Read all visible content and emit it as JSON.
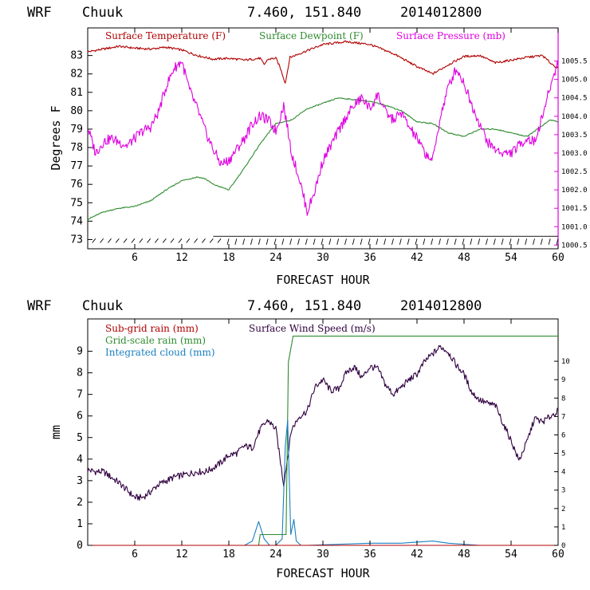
{
  "colors": {
    "temperature": "#b00000",
    "dewpoint": "#2e8b2e",
    "pressure": "#e000e0",
    "wind": "#300040",
    "subgrid": "#b00000",
    "gridscale": "#2e8b2e",
    "cloud": "#1a7fc0",
    "barb": "#000000"
  },
  "chart_data": [
    {
      "type": "line",
      "header": {
        "model": "WRF",
        "location": "Chuuk",
        "coords": "7.460, 151.840",
        "datetime": "2014012800"
      },
      "xlabel": "FORECAST HOUR",
      "ylabel": "Degrees F",
      "xlim": [
        0,
        60
      ],
      "xticks": [
        "6",
        "12",
        "18",
        "24",
        "30",
        "36",
        "42",
        "48",
        "54",
        "60"
      ],
      "ylim_left": [
        72.5,
        84.5
      ],
      "yticks_left": [
        "73",
        "74",
        "75",
        "76",
        "77",
        "78",
        "79",
        "80",
        "81",
        "82",
        "83"
      ],
      "ylim_right": [
        1000.4,
        1006.4
      ],
      "yticks_right": [
        "1000.5",
        "1001.0",
        "1001.5",
        "1002.0",
        "1002.5",
        "1003.0",
        "1003.5",
        "1004.0",
        "1004.5",
        "1005.0",
        "1005.5"
      ],
      "grid": false,
      "legend_placement": "top",
      "legend": [
        "Surface Temperature (F)",
        "Surface Dewpoint (F)",
        "Surface Pressure (mb)"
      ],
      "series": [
        {
          "name": "Surface Temperature (F)",
          "axis": "left",
          "x": [
            0,
            2,
            4,
            6,
            8,
            10,
            12,
            14,
            16,
            18,
            20,
            22,
            22.5,
            23,
            24,
            24.5,
            25.2,
            25.8,
            27,
            30,
            33,
            36,
            39,
            42,
            44,
            46,
            48,
            50,
            52,
            54,
            56,
            58,
            59,
            60
          ],
          "y": [
            83.2,
            83.35,
            83.5,
            83.4,
            83.35,
            83.45,
            83.3,
            83.0,
            82.8,
            82.85,
            82.75,
            82.85,
            82.5,
            82.8,
            82.85,
            82.4,
            81.5,
            82.9,
            83.1,
            83.6,
            83.75,
            83.6,
            83.1,
            82.4,
            82.0,
            82.5,
            82.95,
            83.0,
            82.6,
            82.75,
            82.9,
            83.0,
            82.6,
            82.3
          ]
        },
        {
          "name": "Surface Dewpoint (F)",
          "axis": "left",
          "x": [
            0,
            2,
            4,
            6,
            8,
            10,
            12,
            14,
            15,
            16,
            18,
            20,
            22,
            24,
            26,
            28,
            30,
            32,
            34,
            36,
            38,
            40,
            42,
            44,
            46,
            48,
            50,
            52,
            54,
            56,
            58,
            59,
            60
          ],
          "y": [
            74.1,
            74.5,
            74.7,
            74.8,
            75.1,
            75.7,
            76.2,
            76.4,
            76.3,
            76.0,
            75.7,
            76.9,
            78.2,
            79.3,
            79.5,
            80.1,
            80.4,
            80.7,
            80.6,
            80.5,
            80.3,
            80.0,
            79.4,
            79.3,
            78.8,
            78.6,
            79.0,
            79.0,
            78.8,
            78.6,
            79.2,
            79.5,
            79.4
          ]
        },
        {
          "name": "Surface Pressure (mb)",
          "axis": "right",
          "x": [
            0,
            1,
            2,
            3,
            4,
            5,
            6,
            7,
            8,
            9,
            10,
            11,
            12,
            13,
            14,
            15,
            16,
            17,
            18,
            19,
            20,
            21,
            22,
            23,
            24,
            25,
            26,
            27,
            28,
            29,
            30,
            31,
            32,
            33,
            34,
            35,
            36,
            37,
            38,
            39,
            40,
            41,
            42,
            43,
            44,
            45,
            46,
            47,
            48,
            49,
            50,
            51,
            52,
            53,
            54,
            55,
            56,
            57,
            58,
            59,
            60
          ],
          "y": [
            1003.7,
            1003.0,
            1003.3,
            1003.4,
            1003.3,
            1003.2,
            1003.4,
            1003.6,
            1003.7,
            1004.1,
            1004.8,
            1005.3,
            1005.5,
            1004.7,
            1004.2,
            1003.6,
            1003.1,
            1002.7,
            1002.8,
            1003.1,
            1003.4,
            1003.8,
            1004.0,
            1003.9,
            1003.6,
            1004.3,
            1003.0,
            1002.3,
            1001.4,
            1002.0,
            1002.8,
            1003.2,
            1003.6,
            1004.0,
            1004.3,
            1004.5,
            1004.2,
            1004.6,
            1004.1,
            1003.9,
            1004.1,
            1003.7,
            1003.4,
            1003.0,
            1002.8,
            1004.0,
            1004.8,
            1005.3,
            1004.9,
            1004.3,
            1003.8,
            1003.3,
            1003.1,
            1003.0,
            1003.0,
            1003.2,
            1003.4,
            1003.3,
            1004.0,
            1004.8,
            1005.5
          ]
        }
      ]
    },
    {
      "type": "line",
      "header": {
        "model": "WRF",
        "location": "Chuuk",
        "coords": "7.460, 151.840",
        "datetime": "2014012800"
      },
      "xlabel": "FORECAST HOUR",
      "ylabel": "mm",
      "xlim": [
        0,
        60
      ],
      "xticks": [
        "6",
        "12",
        "18",
        "24",
        "30",
        "36",
        "42",
        "48",
        "54",
        "60"
      ],
      "ylim_left": [
        0,
        10.5
      ],
      "yticks_left": [
        "0",
        "1",
        "2",
        "3",
        "4",
        "5",
        "6",
        "7",
        "8",
        "9"
      ],
      "ylim_right": [
        0,
        12.3
      ],
      "yticks_right": [
        "0",
        "1",
        "2",
        "3",
        "4",
        "5",
        "6",
        "7",
        "8",
        "9",
        "10"
      ],
      "grid": false,
      "legend_placement": "top-left",
      "legend": [
        "Sub-grid rain (mm)",
        "Surface Wind Speed (m/s)",
        "Grid-scale rain (mm)",
        "Integrated cloud (mm)"
      ],
      "series": [
        {
          "name": "Surface Wind Speed (m/s)",
          "axis": "right",
          "x": [
            0,
            1,
            2,
            3,
            4,
            5,
            6,
            7,
            8,
            9,
            10,
            11,
            12,
            13,
            14,
            15,
            16,
            17,
            18,
            19,
            20,
            21,
            22,
            23,
            24,
            25,
            26,
            27,
            28,
            29,
            30,
            31,
            32,
            33,
            34,
            35,
            36,
            37,
            38,
            39,
            40,
            41,
            42,
            43,
            44,
            45,
            46,
            47,
            48,
            49,
            50,
            51,
            52,
            53,
            54,
            55,
            56,
            57,
            58,
            59,
            60
          ],
          "y": [
            4.1,
            4.0,
            4.0,
            3.7,
            3.4,
            3.0,
            2.6,
            2.6,
            2.9,
            3.3,
            3.5,
            3.7,
            3.8,
            3.9,
            4.0,
            4.0,
            4.2,
            4.5,
            4.9,
            5.0,
            5.4,
            5.3,
            6.3,
            6.8,
            6.3,
            3.3,
            6.3,
            7.0,
            7.3,
            8.6,
            9.0,
            8.4,
            8.5,
            9.4,
            9.7,
            9.1,
            9.7,
            9.6,
            8.7,
            8.2,
            8.6,
            9.0,
            9.3,
            10.0,
            10.4,
            10.8,
            10.5,
            9.8,
            9.3,
            8.3,
            7.9,
            7.7,
            7.6,
            6.6,
            5.7,
            4.6,
            5.6,
            6.9,
            6.7,
            7.0,
            7.3
          ]
        },
        {
          "name": "Grid-scale rain (mm)",
          "axis": "left",
          "x": [
            0,
            20,
            21.8,
            22.0,
            24.5,
            25.3,
            25.6,
            26.2,
            60
          ],
          "y": [
            0,
            0,
            0,
            0.5,
            0.5,
            0.5,
            8.5,
            9.7,
            9.7
          ]
        },
        {
          "name": "Integrated cloud (mm)",
          "axis": "left",
          "x": [
            0,
            20,
            21.0,
            21.8,
            22.5,
            23.2,
            24,
            24.8,
            25.2,
            25.5,
            25.9,
            26.3,
            26.6,
            27.2,
            28,
            36,
            40,
            44,
            46,
            50,
            60
          ],
          "y": [
            0,
            0,
            0.2,
            1.1,
            0.3,
            0,
            0,
            0.3,
            4.6,
            5.8,
            0.5,
            1.2,
            0.2,
            0,
            0,
            0.1,
            0.1,
            0.2,
            0.1,
            0,
            0
          ]
        },
        {
          "name": "Sub-grid rain (mm)",
          "axis": "left",
          "x": [
            0,
            60
          ],
          "y": [
            0,
            0
          ]
        }
      ]
    }
  ]
}
